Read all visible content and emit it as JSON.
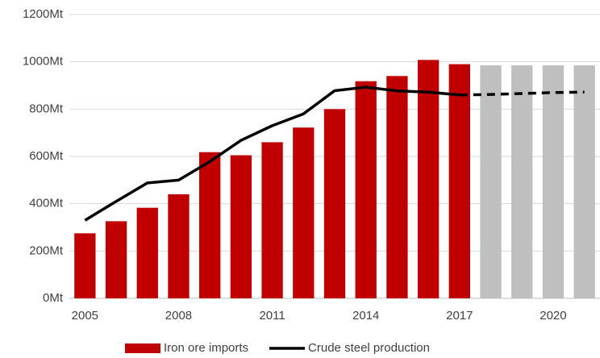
{
  "chart_data": {
    "type": "bar_line",
    "categories": [
      "2005",
      null,
      null,
      "2008",
      null,
      null,
      "2011",
      null,
      null,
      "2014",
      null,
      null,
      "2017",
      null,
      null,
      "2020",
      null
    ],
    "series": [
      {
        "name": "Iron ore imports",
        "type": "bar",
        "color": "#c00000",
        "colors": [
          "#c00000",
          "#c00000",
          "#c00000",
          "#c00000",
          "#c00000",
          "#c00000",
          "#c00000",
          "#c00000",
          "#c00000",
          "#c00000",
          "#c00000",
          "#c00000",
          "#c00000",
          "#bfbfbf",
          "#bfbfbf",
          "#bfbfbf",
          "#bfbfbf"
        ],
        "values": [
          275,
          326,
          383,
          440,
          618,
          605,
          660,
          722,
          800,
          918,
          940,
          1008,
          990,
          985,
          985,
          985,
          985
        ]
      },
      {
        "name": "Crude steel production",
        "type": "line",
        "color": "#000000",
        "dashed": [
          false,
          false,
          false,
          false,
          false,
          false,
          false,
          false,
          false,
          false,
          false,
          false,
          false,
          true,
          true,
          true,
          true
        ],
        "values": [
          330,
          410,
          488,
          500,
          578,
          668,
          730,
          780,
          878,
          893,
          877,
          872,
          860,
          862,
          866,
          870,
          872
        ]
      }
    ],
    "ylim": [
      0,
      1200
    ],
    "yticks": [
      {
        "value": 0,
        "label": "0Mt"
      },
      {
        "value": 200,
        "label": "200Mt"
      },
      {
        "value": 400,
        "label": "400Mt"
      },
      {
        "value": 600,
        "label": "600Mt"
      },
      {
        "value": 800,
        "label": "800Mt"
      },
      {
        "value": 1000,
        "label": "1000Mt"
      },
      {
        "value": 1200,
        "label": "1200Mt"
      }
    ],
    "grid": true,
    "legend": "bottom"
  }
}
